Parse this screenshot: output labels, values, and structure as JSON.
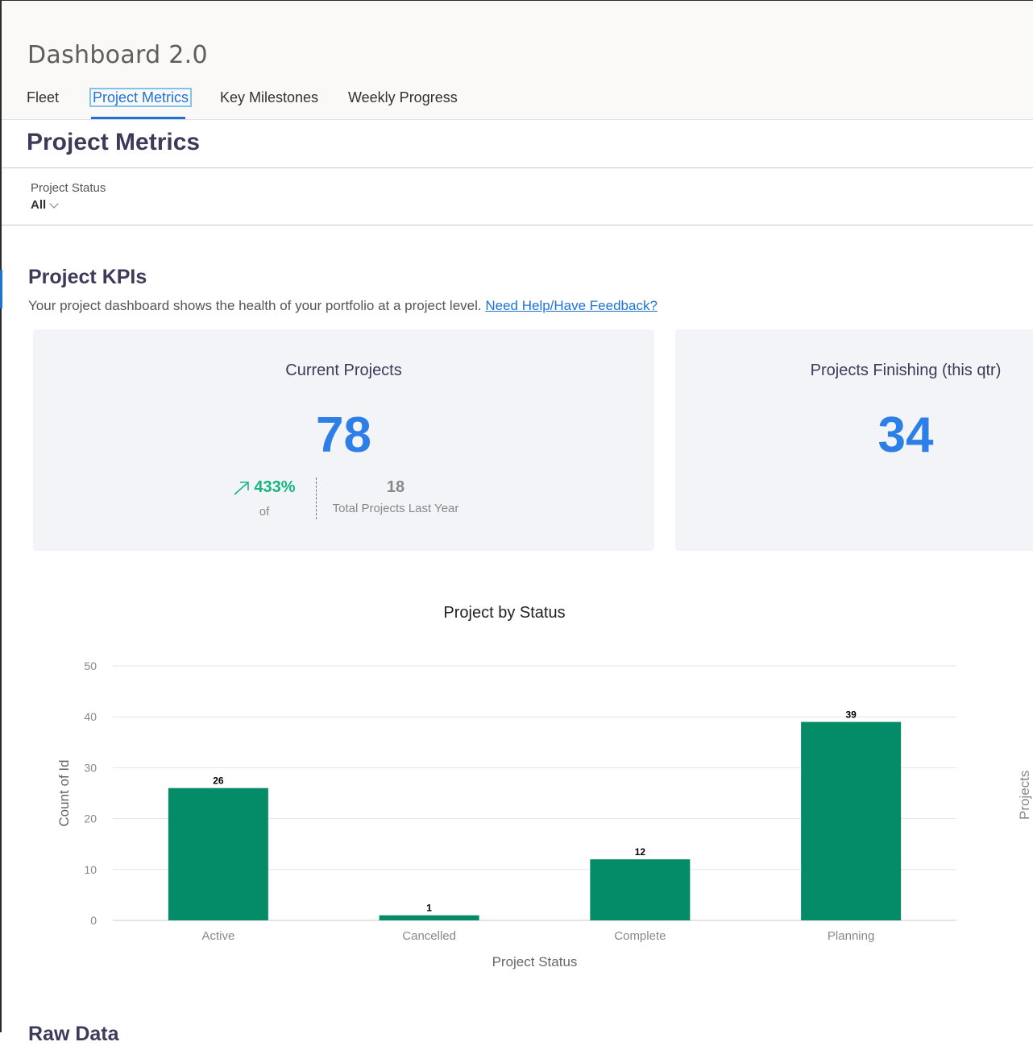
{
  "app": {
    "title": "Dashboard 2.0",
    "tabs": [
      "Fleet",
      "Project Metrics",
      "Key Milestones",
      "Weekly Progress"
    ],
    "active_tab": "Project Metrics"
  },
  "page": {
    "title": "Project Metrics"
  },
  "filter": {
    "label": "Project Status",
    "value": "All"
  },
  "kpis": {
    "heading": "Project KPIs",
    "description": "Your project dashboard shows the health of your portfolio at a project level.",
    "help_link": "Need Help/Have Feedback?",
    "current": {
      "title": "Current Projects",
      "value": "78",
      "change_pct": "433%",
      "change_of": "of",
      "last_year_value": "18",
      "last_year_label": "Total Projects Last Year"
    },
    "finishing": {
      "title": "Projects Finishing (this qtr)",
      "value": "34"
    }
  },
  "chart_data": {
    "type": "bar",
    "title": "Project by Status",
    "categories": [
      "Active",
      "Cancelled",
      "Complete",
      "Planning"
    ],
    "values": [
      26,
      1,
      12,
      39
    ],
    "xlabel": "Project Status",
    "ylabel": "Count of Id",
    "ylim": [
      0,
      50
    ],
    "yticks": [
      0,
      10,
      20,
      30,
      40,
      50
    ],
    "bar_color": "#038c67",
    "grid": true,
    "data_labels": true
  },
  "side_chart": {
    "ylabel": "Projects"
  },
  "raw_data": {
    "heading": "Raw Data"
  }
}
